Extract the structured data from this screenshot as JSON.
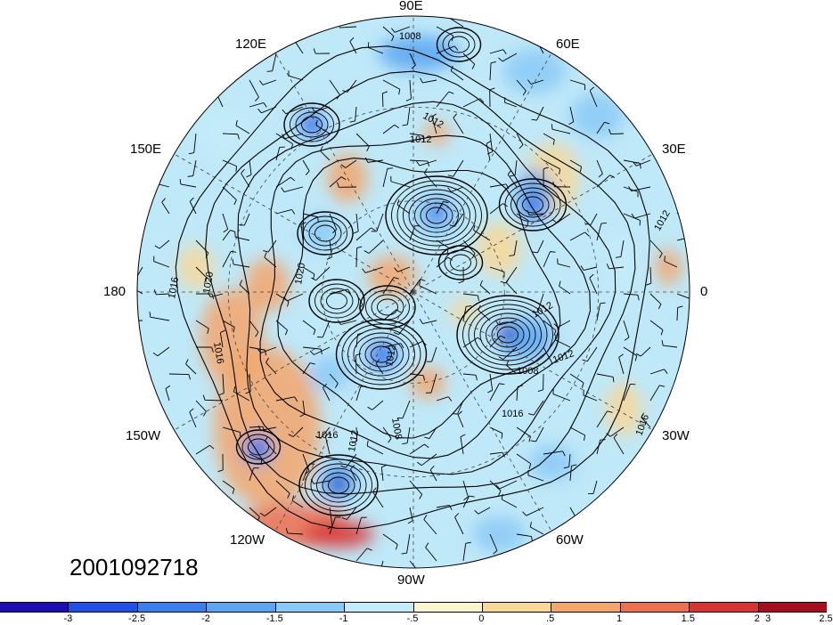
{
  "timestamp": "2001092718",
  "longitude_labels": {
    "lon_90e": "90E",
    "lon_60e": "60E",
    "lon_120e": "120E",
    "lon_30e": "30E",
    "lon_150e": "150E",
    "lon_180": "180",
    "lon_0": "0",
    "lon_150w": "150W",
    "lon_30w": "30W",
    "lon_120w": "120W",
    "lon_60w": "60W",
    "lon_90w": "90W"
  },
  "isobar_labels": [
    "1008",
    "1012",
    "1012",
    "1016",
    "1020",
    "1020",
    "1016",
    "1012",
    "1008",
    "1012",
    "1016",
    "1016",
    "1012",
    "1008",
    "1012",
    "1016",
    "1012"
  ],
  "colorbar": {
    "colors": [
      "#1a0fb4",
      "#2250e6",
      "#3a7ef0",
      "#5ba6f2",
      "#89c9f7",
      "#c3ecfa",
      "#fdf6cd",
      "#f9d797",
      "#f4a66b",
      "#ef6f4e",
      "#d93434",
      "#a80f1e"
    ],
    "tick_labels": [
      "-3",
      "-2.5",
      "-2",
      "-1.5",
      "-1",
      "-.5",
      "0",
      ".5",
      "1",
      "1.5",
      "2",
      "2.5",
      "3"
    ]
  }
}
